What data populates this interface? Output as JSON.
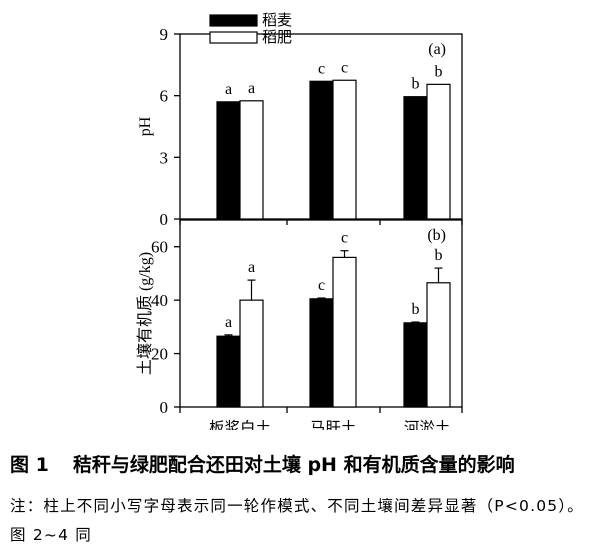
{
  "chart_data": [
    {
      "type": "bar",
      "panel_label": "(a)",
      "ylabel": "pH",
      "ylim": [
        0,
        9
      ],
      "yticks": [
        "0",
        "3",
        "6",
        "9"
      ],
      "categories": [
        "板浆白土",
        "马肝土",
        "河淤土"
      ],
      "series": [
        {
          "name": "稻麦",
          "color": "#000000",
          "values": [
            5.7,
            6.7,
            5.95
          ],
          "errors": [
            0,
            0,
            0
          ],
          "letters": [
            "a",
            "c",
            "b"
          ]
        },
        {
          "name": "稻肥",
          "color": "#ffffff",
          "values": [
            5.75,
            6.75,
            6.55
          ],
          "errors": [
            0,
            0,
            0
          ],
          "letters": [
            "a",
            "c",
            "b"
          ]
        }
      ]
    },
    {
      "type": "bar",
      "panel_label": "(b)",
      "ylabel": "土壤有机质 (g/kg)",
      "ylim": [
        0,
        70
      ],
      "yticks": [
        "0",
        "20",
        "40",
        "60"
      ],
      "categories": [
        "板浆白土",
        "马肝土",
        "河淤土"
      ],
      "xticklabels": [
        "板浆白土",
        "马肝土",
        "河淤土"
      ],
      "series": [
        {
          "name": "稻麦",
          "color": "#000000",
          "values": [
            26.5,
            40.5,
            31.5
          ],
          "errors": [
            0.5,
            0.3,
            0.3
          ],
          "letters": [
            "a",
            "c",
            "b"
          ]
        },
        {
          "name": "稻肥",
          "color": "#ffffff",
          "values": [
            40,
            56,
            46.5
          ],
          "errors": [
            7.5,
            2.5,
            5.5
          ],
          "letters": [
            "a",
            "c",
            "b"
          ]
        }
      ]
    }
  ],
  "legend": [
    {
      "label": "稻麦",
      "color": "#000000"
    },
    {
      "label": "稻肥",
      "color": "#ffffff"
    }
  ],
  "caption": {
    "number": "图 1",
    "title": "秸秆与绿肥配合还田对土壤 pH 和有机质含量的影响"
  },
  "note": "注：柱上不同小写字母表示同一轮作模式、不同土壤间差异显著（P<0.05）。图 2~4 同"
}
